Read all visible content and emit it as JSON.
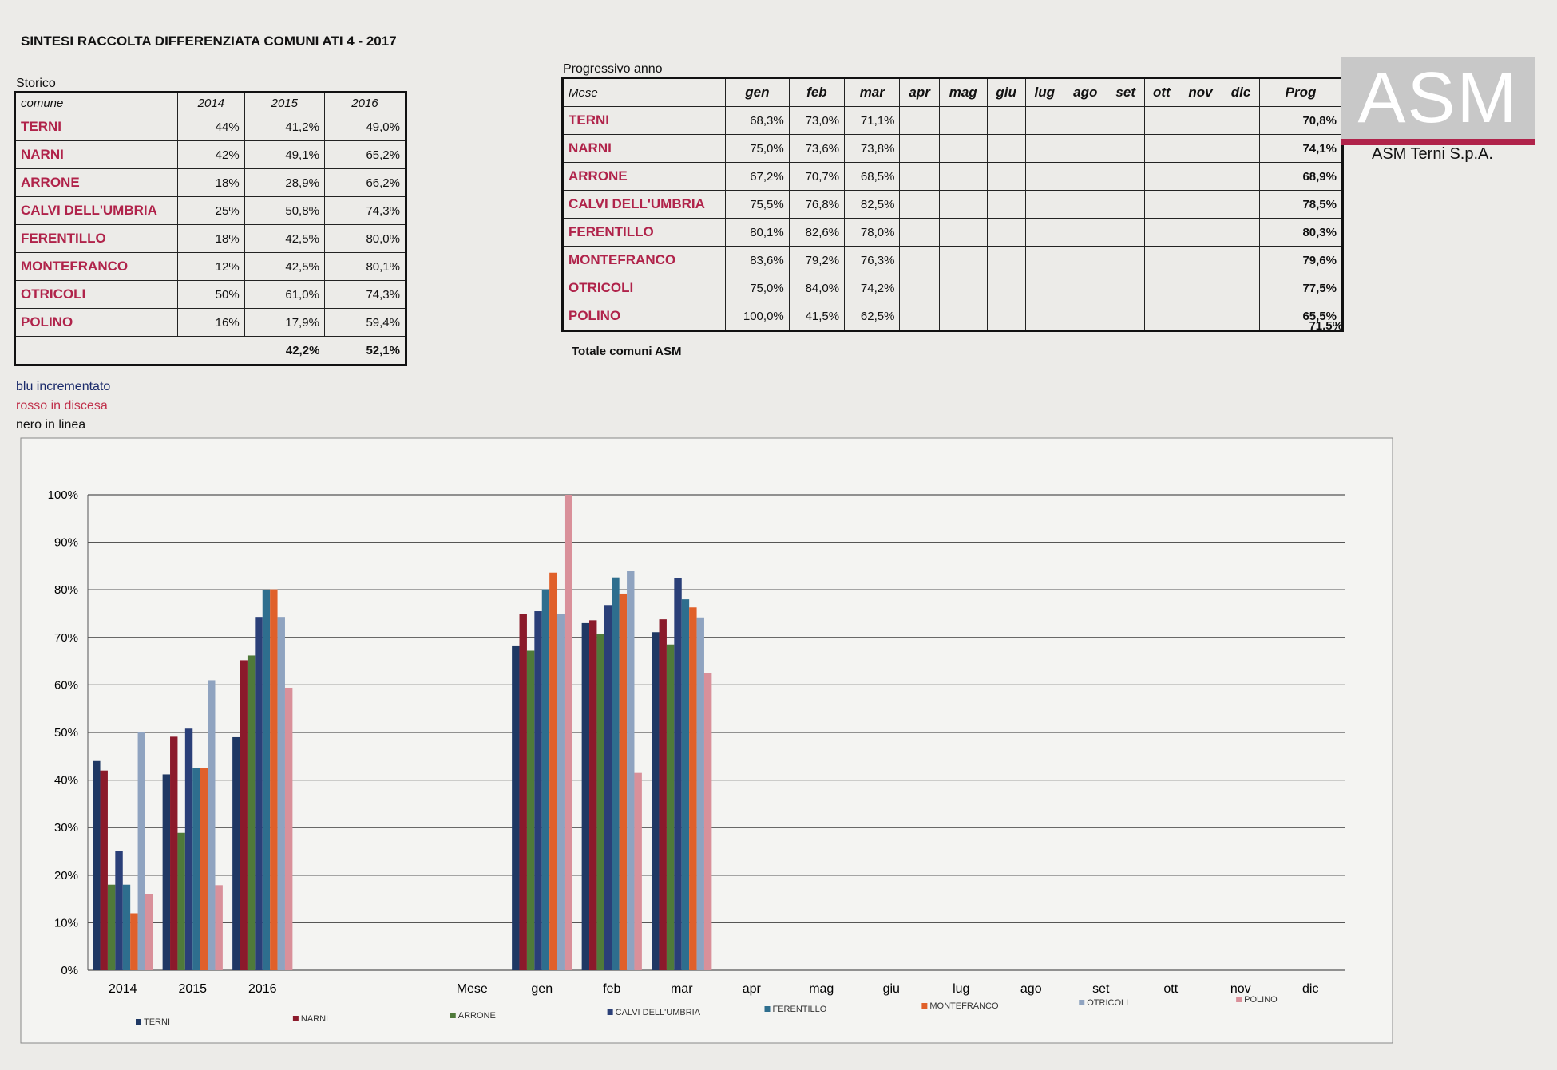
{
  "header": {
    "title": "SINTESI RACCOLTA DIFFERENZIATA COMUNI ATI 4 - 2017"
  },
  "storico": {
    "caption": "Storico",
    "header": {
      "comune": "comune",
      "years": [
        "2014",
        "2015",
        "2016"
      ]
    },
    "rows": [
      {
        "comune": "TERNI",
        "values": [
          "44%",
          "41,2%",
          "49,0%"
        ]
      },
      {
        "comune": "NARNI",
        "values": [
          "42%",
          "49,1%",
          "65,2%"
        ]
      },
      {
        "comune": "ARRONE",
        "values": [
          "18%",
          "28,9%",
          "66,2%"
        ]
      },
      {
        "comune": "CALVI DELL'UMBRIA",
        "values": [
          "25%",
          "50,8%",
          "74,3%"
        ]
      },
      {
        "comune": "FERENTILLO",
        "values": [
          "18%",
          "42,5%",
          "80,0%"
        ]
      },
      {
        "comune": "MONTEFRANCO",
        "values": [
          "12%",
          "42,5%",
          "80,1%"
        ]
      },
      {
        "comune": "OTRICOLI",
        "values": [
          "50%",
          "61,0%",
          "74,3%"
        ]
      },
      {
        "comune": "POLINO",
        "values": [
          "16%",
          "17,9%",
          "59,4%"
        ]
      }
    ],
    "totals": [
      "42,2%",
      "52,1%"
    ]
  },
  "progressivo": {
    "caption": "Progressivo anno",
    "header": {
      "first": "Mese",
      "months": [
        "gen",
        "feb",
        "mar",
        "apr",
        "mag",
        "giu",
        "lug",
        "ago",
        "set",
        "ott",
        "nov",
        "dic"
      ],
      "prog": "Prog"
    },
    "rows": [
      {
        "name": "TERNI",
        "values": [
          "68,3%",
          "73,0%",
          "71,1%"
        ],
        "prog": "70,8%"
      },
      {
        "name": "NARNI",
        "values": [
          "75,0%",
          "73,6%",
          "73,8%"
        ],
        "prog": "74,1%"
      },
      {
        "name": "ARRONE",
        "values": [
          "67,2%",
          "70,7%",
          "68,5%"
        ],
        "prog": "68,9%"
      },
      {
        "name": "CALVI DELL'UMBRIA",
        "values": [
          "75,5%",
          "76,8%",
          "82,5%"
        ],
        "prog": "78,5%"
      },
      {
        "name": "FERENTILLO",
        "values": [
          "80,1%",
          "82,6%",
          "78,0%"
        ],
        "prog": "80,3%"
      },
      {
        "name": "MONTEFRANCO",
        "values": [
          "83,6%",
          "79,2%",
          "76,3%"
        ],
        "prog": "79,6%"
      },
      {
        "name": "OTRICOLI",
        "values": [
          "75,0%",
          "84,0%",
          "74,2%"
        ],
        "prog": "77,5%"
      },
      {
        "name": "POLINO",
        "values": [
          "100,0%",
          "41,5%",
          "62,5%"
        ],
        "prog": "65,5%"
      }
    ],
    "total_label": "Totale comuni ASM",
    "total": "71,5%"
  },
  "logo": {
    "mark": "ASM",
    "company": "ASM Terni S.p.A."
  },
  "notes": [
    "blu incrementato",
    "rosso in discesa",
    "nero in linea"
  ],
  "chart_data": {
    "type": "bar",
    "categories": [
      "2014",
      "2015",
      "2016",
      null,
      null,
      "Mese",
      "gen",
      "feb",
      "mar",
      "apr",
      "mag",
      "giu",
      "lug",
      "ago",
      "set",
      "ott",
      "nov",
      "dic"
    ],
    "ylim": [
      0,
      100
    ],
    "yticks": [
      {
        "value": 0,
        "label": "0%"
      },
      {
        "value": 10,
        "label": "10%"
      },
      {
        "value": 20,
        "label": "20%"
      },
      {
        "value": 30,
        "label": "30%"
      },
      {
        "value": 40,
        "label": "40%"
      },
      {
        "value": 50,
        "label": "50%"
      },
      {
        "value": 60,
        "label": "60%"
      },
      {
        "value": 70,
        "label": "70%"
      },
      {
        "value": 80,
        "label": "80%"
      },
      {
        "value": 90,
        "label": "90%"
      },
      {
        "value": 100,
        "label": "100%"
      }
    ],
    "grid": true,
    "legend": "bottom",
    "series": [
      {
        "name": "TERNI",
        "color": "#1f3864",
        "values": [
          44,
          41.2,
          49.0,
          null,
          null,
          null,
          68.3,
          73.0,
          71.1,
          null,
          null,
          null,
          null,
          null,
          null,
          null,
          null,
          null
        ]
      },
      {
        "name": "NARNI",
        "color": "#8b1a2b",
        "values": [
          42,
          49.1,
          65.2,
          null,
          null,
          null,
          75.0,
          73.6,
          73.8,
          null,
          null,
          null,
          null,
          null,
          null,
          null,
          null,
          null
        ]
      },
      {
        "name": "ARRONE",
        "color": "#4f7a3a",
        "values": [
          18,
          28.9,
          66.2,
          null,
          null,
          null,
          67.2,
          70.7,
          68.5,
          null,
          null,
          null,
          null,
          null,
          null,
          null,
          null,
          null
        ]
      },
      {
        "name": "CALVI DELL'UMBRIA",
        "color": "#2a3f78",
        "values": [
          25,
          50.8,
          74.3,
          null,
          null,
          null,
          75.5,
          76.8,
          82.5,
          null,
          null,
          null,
          null,
          null,
          null,
          null,
          null,
          null
        ]
      },
      {
        "name": "FERENTILLO",
        "color": "#2e6e8e",
        "values": [
          18,
          42.5,
          80.0,
          null,
          null,
          null,
          80.1,
          82.6,
          78.0,
          null,
          null,
          null,
          null,
          null,
          null,
          null,
          null,
          null
        ]
      },
      {
        "name": "MONTEFRANCO",
        "color": "#e0602a",
        "values": [
          12,
          42.5,
          80.1,
          null,
          null,
          null,
          83.6,
          79.2,
          76.3,
          null,
          null,
          null,
          null,
          null,
          null,
          null,
          null,
          null
        ]
      },
      {
        "name": "OTRICOLI",
        "color": "#8fa3c0",
        "values": [
          50,
          61.0,
          74.3,
          null,
          null,
          null,
          75.0,
          84.0,
          74.2,
          null,
          null,
          null,
          null,
          null,
          null,
          null,
          null,
          null
        ]
      },
      {
        "name": "POLINO",
        "color": "#d9909a",
        "values": [
          16,
          17.9,
          59.4,
          null,
          null,
          null,
          100.0,
          41.5,
          62.5,
          null,
          null,
          null,
          null,
          null,
          null,
          null,
          null,
          null
        ]
      }
    ]
  }
}
